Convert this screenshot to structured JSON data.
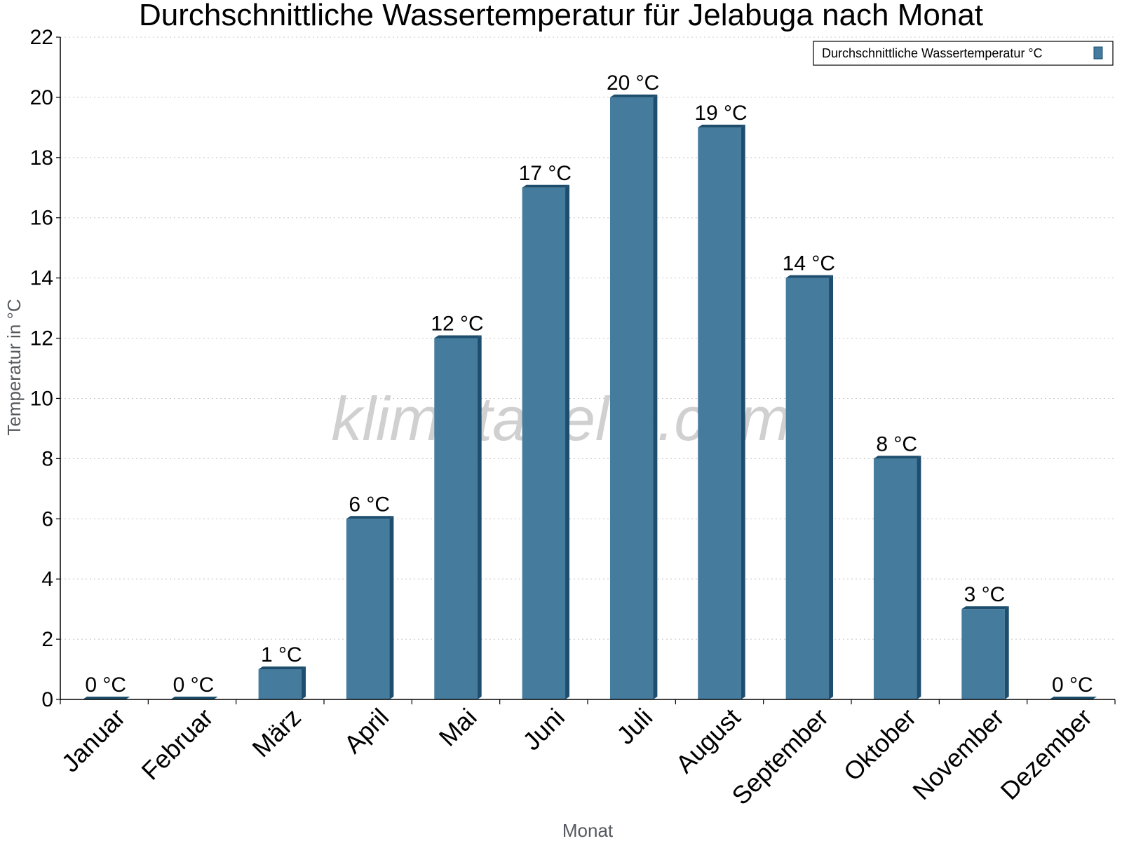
{
  "chart_data": {
    "type": "bar",
    "title": "Durchschnittliche Wassertemperatur für Jelabuga nach Monat",
    "xlabel": "Monat",
    "ylabel": "Temperatur in °C",
    "categories": [
      "Januar",
      "Februar",
      "März",
      "April",
      "Mai",
      "Juni",
      "Juli",
      "August",
      "September",
      "Oktober",
      "November",
      "Dezember"
    ],
    "series": [
      {
        "name": "Durchschnittliche Wassertemperatur °C",
        "values": [
          0,
          0,
          1,
          6,
          12,
          17,
          20,
          19,
          14,
          8,
          3,
          0
        ],
        "data_labels": [
          "0 °C",
          "0 °C",
          "1 °C",
          "6 °C",
          "12 °C",
          "17 °C",
          "20 °C",
          "19 °C",
          "14 °C",
          "8 °C",
          "3 °C",
          "0 °C"
        ]
      }
    ],
    "ylim": [
      0,
      22
    ],
    "yticks": [
      0,
      2,
      4,
      6,
      8,
      10,
      12,
      14,
      16,
      18,
      20,
      22
    ],
    "grid": true,
    "legend": "top-right",
    "watermark": "klimatabelle.com",
    "colors": {
      "bar": "#457b9d",
      "bar_side": "#1d4e6e",
      "bar_top": "#1d4e6e",
      "grid": "#c8c8c8",
      "axis": "#000000",
      "axis_title": "#55595e"
    }
  }
}
